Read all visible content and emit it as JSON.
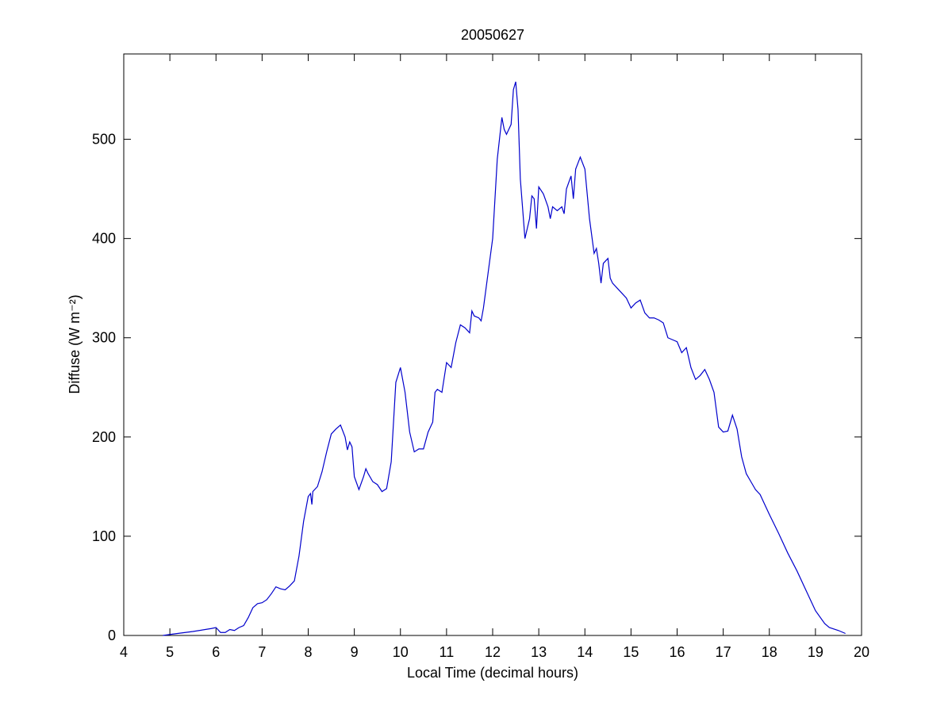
{
  "chart_data": {
    "type": "line",
    "title": "20050627",
    "x_label": "Local Time (decimal hours)",
    "y_label": "Diffuse (W m⁻²)",
    "x": [
      4.85,
      5.0,
      5.5,
      5.9,
      6.0,
      6.1,
      6.2,
      6.3,
      6.4,
      6.5,
      6.6,
      6.7,
      6.8,
      6.9,
      7.0,
      7.1,
      7.2,
      7.3,
      7.4,
      7.5,
      7.6,
      7.7,
      7.8,
      7.9,
      8.0,
      8.05,
      8.08,
      8.1,
      8.2,
      8.3,
      8.4,
      8.5,
      8.6,
      8.7,
      8.8,
      8.85,
      8.9,
      8.95,
      9.0,
      9.1,
      9.2,
      9.25,
      9.3,
      9.4,
      9.5,
      9.6,
      9.7,
      9.8,
      9.9,
      10.0,
      10.1,
      10.2,
      10.3,
      10.4,
      10.5,
      10.6,
      10.7,
      10.75,
      10.8,
      10.9,
      11.0,
      11.1,
      11.2,
      11.3,
      11.4,
      11.5,
      11.55,
      11.6,
      11.7,
      11.75,
      11.8,
      11.9,
      12.0,
      12.1,
      12.2,
      12.25,
      12.3,
      12.4,
      12.45,
      12.5,
      12.55,
      12.6,
      12.7,
      12.8,
      12.85,
      12.9,
      12.95,
      13.0,
      13.1,
      13.2,
      13.25,
      13.3,
      13.4,
      13.5,
      13.55,
      13.6,
      13.7,
      13.75,
      13.8,
      13.9,
      14.0,
      14.1,
      14.2,
      14.25,
      14.3,
      14.35,
      14.4,
      14.5,
      14.55,
      14.6,
      14.7,
      14.8,
      14.9,
      15.0,
      15.1,
      15.2,
      15.3,
      15.4,
      15.5,
      15.6,
      15.7,
      15.8,
      15.9,
      16.0,
      16.1,
      16.2,
      16.3,
      16.4,
      16.5,
      16.6,
      16.7,
      16.8,
      16.9,
      17.0,
      17.1,
      17.2,
      17.3,
      17.4,
      17.5,
      17.6,
      17.7,
      17.8,
      18.0,
      18.2,
      18.4,
      18.6,
      18.8,
      19.0,
      19.2,
      19.3,
      19.5,
      19.65
    ],
    "series": [
      {
        "name": "Diffuse",
        "color": "#0000cc",
        "values": [
          0,
          1,
          4,
          7,
          8,
          3,
          3,
          6,
          5,
          8,
          10,
          18,
          28,
          32,
          33,
          36,
          42,
          49,
          47,
          46,
          50,
          55,
          80,
          115,
          140,
          143,
          132,
          145,
          150,
          165,
          185,
          203,
          208,
          212,
          200,
          187,
          195,
          190,
          160,
          147,
          160,
          168,
          163,
          155,
          152,
          145,
          148,
          175,
          255,
          270,
          245,
          205,
          185,
          188,
          188,
          205,
          215,
          245,
          248,
          245,
          275,
          270,
          295,
          313,
          310,
          305,
          327,
          322,
          320,
          317,
          330,
          365,
          400,
          480,
          522,
          510,
          505,
          515,
          550,
          558,
          530,
          460,
          400,
          420,
          443,
          440,
          410,
          452,
          445,
          432,
          420,
          432,
          428,
          432,
          425,
          450,
          463,
          440,
          470,
          482,
          470,
          420,
          385,
          390,
          375,
          355,
          375,
          380,
          360,
          355,
          350,
          345,
          340,
          330,
          335,
          338,
          325,
          320,
          320,
          318,
          315,
          300,
          298,
          296,
          285,
          290,
          270,
          258,
          262,
          268,
          258,
          245,
          210,
          205,
          206,
          222,
          208,
          180,
          163,
          155,
          147,
          142,
          122,
          103,
          83,
          65,
          45,
          25,
          12,
          8,
          5,
          2
        ]
      }
    ],
    "xlim": [
      4,
      20
    ],
    "ylim": [
      0,
      586
    ],
    "xticks": [
      4,
      5,
      6,
      7,
      8,
      9,
      10,
      11,
      12,
      13,
      14,
      15,
      16,
      17,
      18,
      19,
      20
    ],
    "yticks": [
      0,
      100,
      200,
      300,
      400,
      500
    ]
  }
}
